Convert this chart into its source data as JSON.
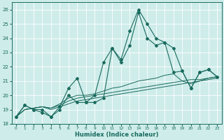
{
  "xlabel": "Humidex (Indice chaleur)",
  "background_color": "#ceecea",
  "line_color": "#1a6b5e",
  "grid_color": "#ffffff",
  "xlim": [
    -0.5,
    23.5
  ],
  "ylim": [
    18,
    26.5
  ],
  "yticks": [
    18,
    19,
    20,
    21,
    22,
    23,
    24,
    25,
    26
  ],
  "xticks": [
    0,
    1,
    2,
    3,
    4,
    5,
    6,
    7,
    8,
    9,
    10,
    11,
    12,
    13,
    14,
    15,
    16,
    17,
    18,
    19,
    20,
    21,
    22,
    23
  ],
  "series_with_markers": [
    [
      18.5,
      19.3,
      19.0,
      19.0,
      18.5,
      19.2,
      20.5,
      21.2,
      19.5,
      20.0,
      22.3,
      23.3,
      22.3,
      23.5,
      25.8,
      24.0,
      23.5,
      23.7,
      21.6,
      21.7,
      20.5,
      21.6,
      21.8,
      21.3
    ],
    [
      18.5,
      19.3,
      19.0,
      18.8,
      18.5,
      19.0,
      20.0,
      19.5,
      19.5,
      19.5,
      19.8,
      23.3,
      22.5,
      24.5,
      26.0,
      25.0,
      24.0,
      23.7,
      23.3,
      21.7,
      20.5,
      21.6,
      21.8,
      21.3
    ]
  ],
  "series_smooth": [
    [
      18.5,
      19.0,
      19.1,
      19.2,
      19.1,
      19.4,
      19.8,
      20.0,
      20.0,
      20.1,
      20.3,
      20.5,
      20.6,
      20.8,
      21.0,
      21.1,
      21.2,
      21.4,
      21.5,
      21.0,
      20.8,
      21.0,
      21.2,
      21.3
    ],
    [
      18.5,
      19.0,
      19.1,
      19.2,
      19.1,
      19.3,
      19.6,
      19.8,
      19.9,
      20.0,
      20.1,
      20.2,
      20.3,
      20.4,
      20.5,
      20.6,
      20.7,
      20.8,
      20.9,
      21.0,
      21.1,
      21.1,
      21.2,
      21.3
    ],
    [
      18.5,
      19.0,
      19.1,
      19.2,
      19.0,
      19.2,
      19.4,
      19.6,
      19.7,
      19.8,
      19.9,
      20.0,
      20.1,
      20.2,
      20.3,
      20.4,
      20.5,
      20.6,
      20.7,
      20.8,
      20.9,
      21.0,
      21.1,
      21.2
    ]
  ]
}
